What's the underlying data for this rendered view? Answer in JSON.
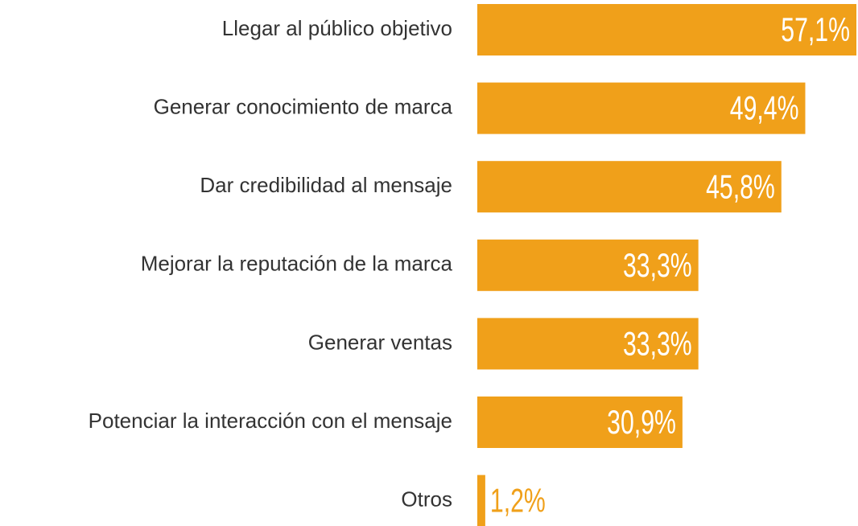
{
  "chart_data": {
    "type": "bar",
    "orientation": "horizontal",
    "categories": [
      "Llegar al público objetivo",
      "Generar conocimiento de marca",
      "Dar credibilidad al mensaje",
      "Mejorar la reputación de la marca",
      "Generar ventas",
      "Potenciar la interacción con el mensaje",
      "Otros"
    ],
    "values": [
      57.1,
      49.4,
      45.8,
      33.3,
      33.3,
      30.9,
      1.2
    ],
    "value_labels": [
      "57,1%",
      "49,4%",
      "45,8%",
      "33,3%",
      "33,3%",
      "30,9%",
      "1,2%"
    ],
    "color": "#f0a01a"
  }
}
